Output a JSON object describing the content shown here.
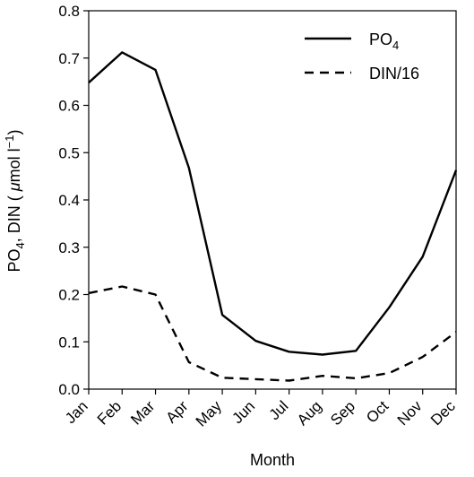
{
  "chart_data": {
    "type": "line",
    "title": "",
    "x": [
      "Jan",
      "Feb",
      "Mar",
      "Apr",
      "May",
      "Jun",
      "Jul",
      "Aug",
      "Sep",
      "Oct",
      "Nov",
      "Dec"
    ],
    "xlabel": "Month",
    "ylabel": {
      "part1": "PO",
      "sub": "4",
      "part2": ", DIN ( ",
      "mu": "μ",
      "part3": "mol l",
      "sup": "−1",
      "part4": ")"
    },
    "ylim": [
      0,
      0.8
    ],
    "yticks": [
      "0.0",
      "0.1",
      "0.2",
      "0.3",
      "0.4",
      "0.5",
      "0.6",
      "0.7",
      "0.8"
    ],
    "grid": false,
    "legend_position": "top-right",
    "series": [
      {
        "name": "PO4",
        "legend_main": "PO",
        "legend_sub": "4",
        "style": "solid",
        "color": "#000000",
        "values": [
          0.648,
          0.712,
          0.675,
          0.468,
          0.157,
          0.102,
          0.079,
          0.073,
          0.081,
          0.173,
          0.28,
          0.463
        ]
      },
      {
        "name": "DIN/16",
        "legend_main": "DIN/16",
        "legend_sub": "",
        "style": "dashed",
        "color": "#000000",
        "values": [
          0.203,
          0.217,
          0.2,
          0.057,
          0.024,
          0.021,
          0.018,
          0.028,
          0.023,
          0.034,
          0.068,
          0.121
        ]
      }
    ]
  }
}
